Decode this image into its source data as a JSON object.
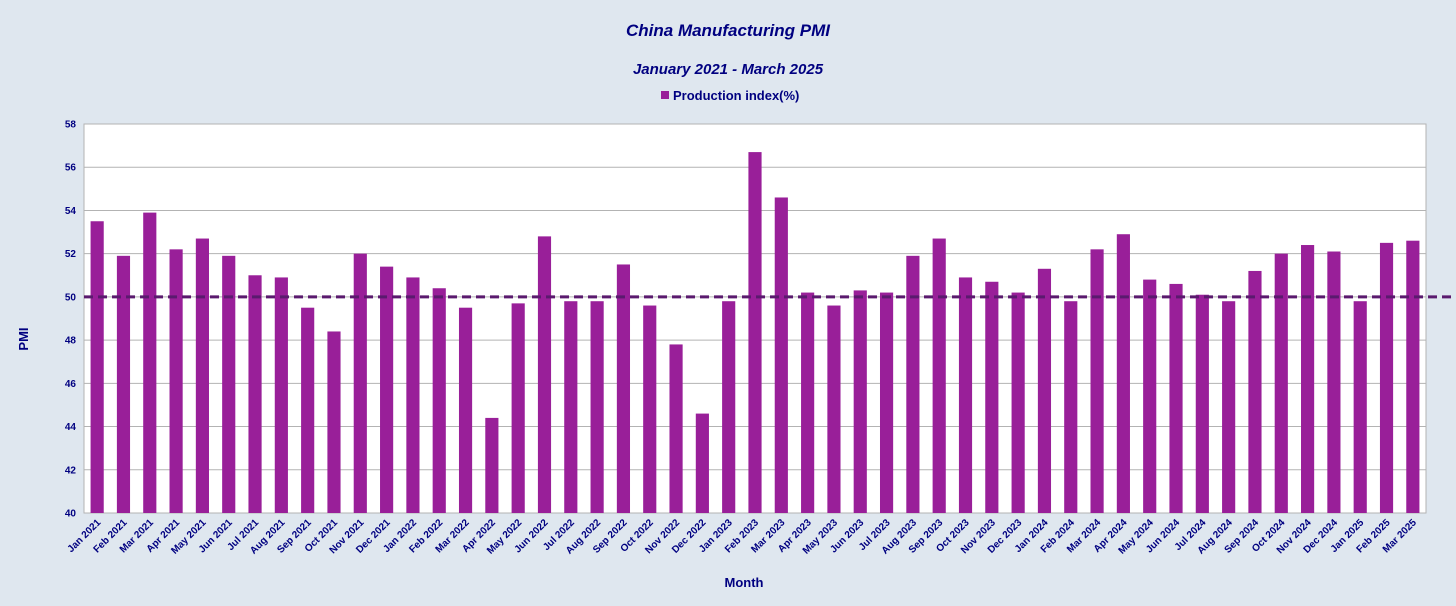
{
  "chart_data": {
    "type": "bar",
    "title": "China Manufacturing PMI",
    "subtitle": "January 2021 - March 2025",
    "xlabel": "Month",
    "ylabel": "PMI",
    "ylim": [
      40,
      58
    ],
    "yticks": [
      40,
      42,
      44,
      46,
      48,
      50,
      52,
      54,
      56,
      58
    ],
    "grid": true,
    "legend_position": "top-center",
    "reference_line": 50,
    "categories": [
      "Jan 2021",
      "Feb 2021",
      "Mar 2021",
      "Apr 2021",
      "May 2021",
      "Jun 2021",
      "Jul 2021",
      "Aug 2021",
      "Sep 2021",
      "Oct 2021",
      "Nov 2021",
      "Dec 2021",
      "Jan 2022",
      "Feb 2022",
      "Mar 2022",
      "Apr 2022",
      "May 2022",
      "Jun 2022",
      "Jul 2022",
      "Aug 2022",
      "Sep 2022",
      "Oct 2022",
      "Nov 2022",
      "Dec 2022",
      "Jan 2023",
      "Feb 2023",
      "Mar 2023",
      "Apr 2023",
      "May 2023",
      "Jun 2023",
      "Jul 2023",
      "Aug 2023",
      "Sep 2023",
      "Oct 2023",
      "Nov 2023",
      "Dec 2023",
      "Jan 2024",
      "Feb 2024",
      "Mar 2024",
      "Apr 2024",
      "May 2024",
      "Jun 2024",
      "Jul 2024",
      "Aug 2024",
      "Sep 2024",
      "Oct 2024",
      "Nov 2024",
      "Dec 2024",
      "Jan 2025",
      "Feb 2025",
      "Mar 2025"
    ],
    "series": [
      {
        "name": "Production index(%)",
        "color": "#991f99",
        "values": [
          53.5,
          51.9,
          53.9,
          52.2,
          52.7,
          51.9,
          51.0,
          50.9,
          49.5,
          48.4,
          52.0,
          51.4,
          50.9,
          50.4,
          49.5,
          44.4,
          49.7,
          52.8,
          49.8,
          49.8,
          51.5,
          49.6,
          47.8,
          44.6,
          49.8,
          56.7,
          54.6,
          50.2,
          49.6,
          50.3,
          50.2,
          51.9,
          52.7,
          50.9,
          50.7,
          50.2,
          51.3,
          49.8,
          52.2,
          52.9,
          50.8,
          50.6,
          50.1,
          49.8,
          51.2,
          52.0,
          52.4,
          52.1,
          49.8,
          52.5,
          52.6
        ]
      }
    ],
    "colors": {
      "background": "#dfe7ef",
      "plot_background": "#ffffff",
      "text": "#000080",
      "grid": "#b3b3b3",
      "reference_line": "#5a1a6e"
    }
  }
}
